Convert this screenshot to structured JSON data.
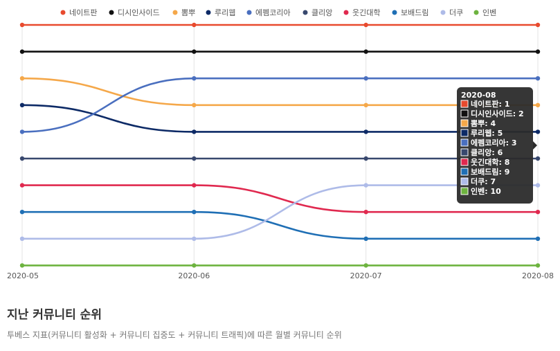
{
  "chart_data": {
    "type": "line",
    "y_meaning": "rank",
    "y_inverted": true,
    "ylim": [
      1,
      10
    ],
    "x": [
      "2020-05",
      "2020-06",
      "2020-07",
      "2020-08"
    ],
    "series": [
      {
        "name": "네이트판",
        "color": "#e84a2e",
        "values": [
          1,
          1,
          1,
          1
        ]
      },
      {
        "name": "디시인사이드",
        "color": "#111111",
        "values": [
          2,
          2,
          2,
          2
        ]
      },
      {
        "name": "뽐뿌",
        "color": "#f5a84a",
        "values": [
          3,
          4,
          4,
          4
        ]
      },
      {
        "name": "루리웹",
        "color": "#0d2a66",
        "values": [
          4,
          5,
          5,
          5
        ]
      },
      {
        "name": "에펨코리아",
        "color": "#4a6fbf",
        "values": [
          5,
          3,
          3,
          3
        ]
      },
      {
        "name": "클리앙",
        "color": "#38486e",
        "values": [
          6,
          6,
          6,
          6
        ]
      },
      {
        "name": "웃긴대학",
        "color": "#e0294f",
        "values": [
          7,
          7,
          8,
          8
        ]
      },
      {
        "name": "보배드림",
        "color": "#1f6fb5",
        "values": [
          8,
          8,
          9,
          9
        ]
      },
      {
        "name": "더쿠",
        "color": "#aebbe8",
        "values": [
          9,
          9,
          7,
          7
        ]
      },
      {
        "name": "인벤",
        "color": "#6db33f",
        "values": [
          10,
          10,
          10,
          10
        ]
      }
    ],
    "legend_position": "top",
    "grid": "vertical",
    "tooltip": {
      "title": "2020-08",
      "entries": [
        "네이트판: 1",
        "디시인사이드: 2",
        "뽐뿌: 4",
        "루리웹: 5",
        "에펨코리아: 3",
        "클리앙: 6",
        "웃긴대학: 8",
        "보배드림: 9",
        "더쿠: 7",
        "인벤: 10"
      ]
    }
  },
  "section": {
    "title": "지난 커뮤니티 순위",
    "description": "투베스 지표(커뮤니티 활성화 + 커뮤니티 집중도 + 커뮤니티 트래픽)에 따른 월별 커뮤니티 순위"
  }
}
